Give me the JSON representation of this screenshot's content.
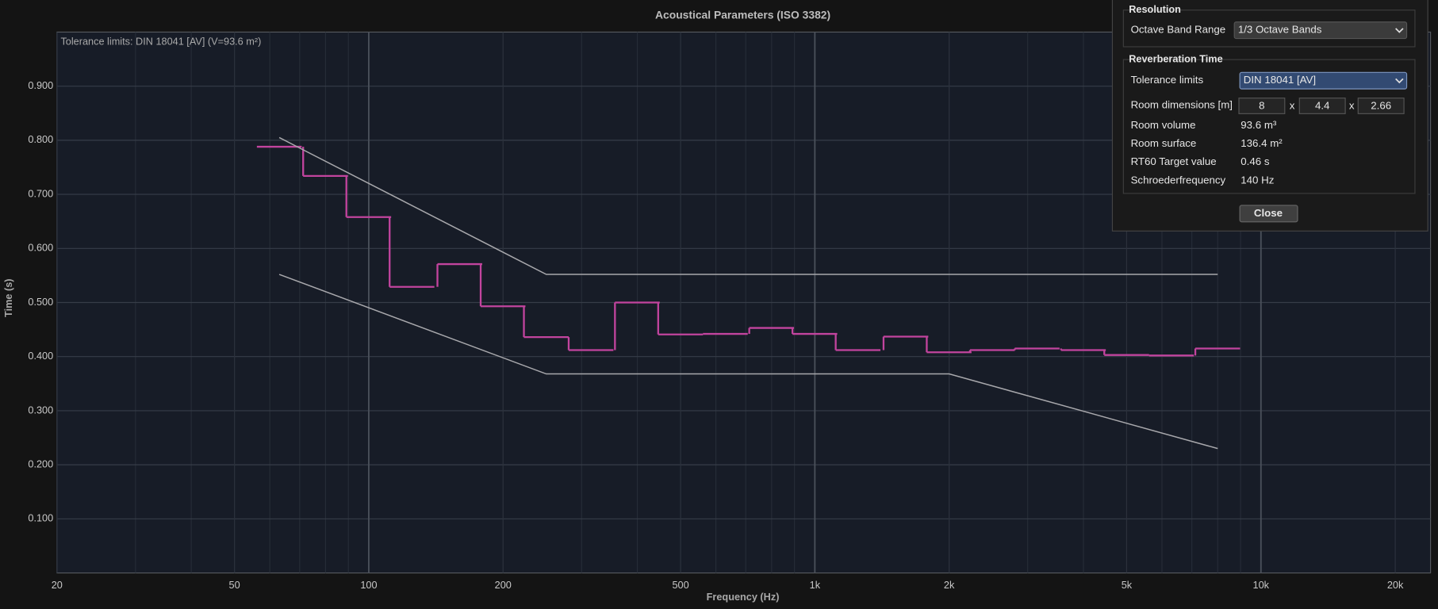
{
  "chart_data": {
    "type": "line",
    "title": "Acoustical Parameters (ISO 3382)",
    "annotation": "Tolerance limits: DIN 18041 [AV] (V=93.6 m²)",
    "x_label": "Frequency (Hz)",
    "y_label": "Time (s)",
    "log_x": true,
    "grid": true,
    "xlim": [
      20,
      24000
    ],
    "ylim": [
      0,
      1
    ],
    "xticks": [
      20,
      50,
      100,
      200,
      500,
      {
        "value": 1000,
        "label": "1k"
      },
      {
        "value": 2000,
        "label": "2k"
      },
      {
        "value": 5000,
        "label": "5k"
      },
      {
        "value": 10000,
        "label": "10k"
      },
      {
        "value": 20000,
        "label": "20k"
      }
    ],
    "yticks": [
      {
        "value": 0.1,
        "label": "0.100"
      },
      {
        "value": 0.2,
        "label": "0.200"
      },
      {
        "value": 0.3,
        "label": "0.300"
      },
      {
        "value": 0.4,
        "label": "0.400"
      },
      {
        "value": 0.5,
        "label": "0.500"
      },
      {
        "value": 0.6,
        "label": "0.600"
      },
      {
        "value": 0.7,
        "label": "0.700"
      },
      {
        "value": 0.8,
        "label": "0.800"
      },
      {
        "value": 0.9,
        "label": "0.900"
      }
    ],
    "series": [
      {
        "color": "#c2449e",
        "step": true,
        "x": [
          63,
          80,
          100,
          125,
          160,
          200,
          250,
          315,
          400,
          500,
          630,
          800,
          1000,
          1250,
          1600,
          2000,
          2500,
          3150,
          4000,
          5000,
          6300,
          8000
        ],
        "values": [
          0.788,
          0.734,
          0.658,
          0.529,
          0.571,
          0.493,
          0.436,
          0.412,
          0.5,
          0.441,
          0.442,
          0.453,
          0.442,
          0.412,
          0.437,
          0.408,
          0.412,
          0.415,
          0.412,
          0.403,
          0.402,
          0.415
        ]
      },
      {
        "color": "#a8a8ac",
        "x": [
          63,
          250,
          8000
        ],
        "values": [
          0.805,
          0.552,
          0.552
        ]
      },
      {
        "color": "#a8a8ac",
        "x": [
          63,
          250,
          2000,
          8000
        ],
        "values": [
          0.552,
          0.368,
          0.368,
          0.23
        ]
      }
    ]
  },
  "panel": {
    "resolution": {
      "title": "Resolution",
      "octave_band_range": {
        "label": "Octave Band Range",
        "value": "1/3 Octave Bands"
      }
    },
    "reverberation": {
      "title": "Reverberation Time",
      "tolerance_limits": {
        "label": "Tolerance limits",
        "value": "DIN 18041 [AV]"
      },
      "room_dimensions": {
        "label": "Room dimensions [m]",
        "values": [
          "8",
          "4.4",
          "2.66"
        ],
        "separator": "x"
      },
      "room_volume": {
        "label": "Room volume",
        "value": "93.6 m³"
      },
      "room_surface": {
        "label": "Room surface",
        "value": "136.4 m²"
      },
      "rt60_target": {
        "label": "RT60 Target value",
        "value": "0.46 s"
      },
      "schroeder": {
        "label": "Schroederfrequency",
        "value": "140 Hz"
      }
    },
    "close": "Close"
  }
}
